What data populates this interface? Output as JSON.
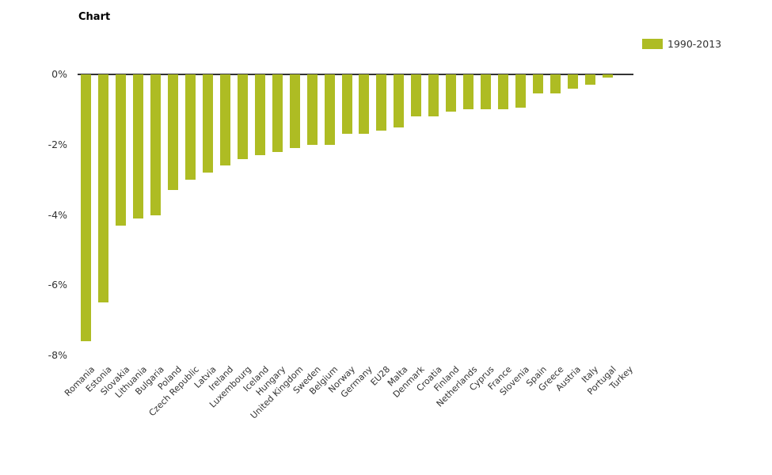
{
  "header": {
    "title": "Chart"
  },
  "legend": {
    "items": [
      {
        "label": "1990-2013",
        "color": "#aebc23"
      }
    ]
  },
  "chart_data": {
    "type": "bar",
    "title": "Chart",
    "orientation": "vertical",
    "categories": [
      "Romania",
      "Estonia",
      "Slovakia",
      "Lithuania",
      "Bulgaria",
      "Poland",
      "Czech Republic",
      "Latvia",
      "Ireland",
      "Luxembourg",
      "Iceland",
      "Hungary",
      "United Kingdom",
      "Sweden",
      "Belgium",
      "Norway",
      "Germany",
      "EU28",
      "Malta",
      "Denmark",
      "Croatia",
      "Finland",
      "Netherlands",
      "Cyprus",
      "France",
      "Slovenia",
      "Spain",
      "Greece",
      "Austria",
      "Italy",
      "Portugal",
      "Turkey"
    ],
    "series": [
      {
        "name": "1990-2013",
        "color": "#aebc23",
        "values": [
          -7.6,
          -6.5,
          -4.3,
          -4.1,
          -4.0,
          -3.3,
          -3.0,
          -2.8,
          -2.6,
          -2.4,
          -2.3,
          -2.2,
          -2.1,
          -2.0,
          -2.0,
          -1.7,
          -1.7,
          -1.6,
          -1.5,
          -1.2,
          -1.2,
          -1.05,
          -1.0,
          -1.0,
          -1.0,
          -0.95,
          -0.55,
          -0.55,
          -0.4,
          -0.3,
          -0.1,
          0.0
        ]
      }
    ],
    "xlabel": "",
    "ylabel": "",
    "ylim": [
      -8,
      0
    ],
    "y_ticks": [
      {
        "label": "0%",
        "value": 0
      },
      {
        "label": "-2%",
        "value": -2
      },
      {
        "label": "-4%",
        "value": -4
      },
      {
        "label": "-6%",
        "value": -6
      },
      {
        "label": "-8%",
        "value": -8
      }
    ],
    "grid": false,
    "legend_position": "top-right",
    "axis_color": "#333333",
    "label_color": "#333333",
    "background_color": "#ffffff"
  }
}
